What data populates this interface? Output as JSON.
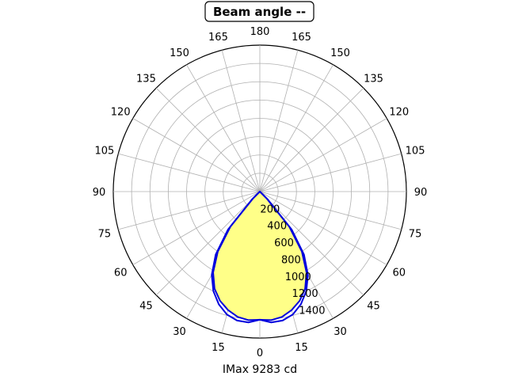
{
  "chart_data": {
    "type": "polar",
    "title": "Beam angle --",
    "xlabel": "IMax 9283 cd",
    "angle_ticks": [
      "0",
      "15",
      "30",
      "45",
      "60",
      "75",
      "90",
      "105",
      "120",
      "135",
      "150",
      "165",
      "180",
      "165",
      "150",
      "135",
      "120",
      "105",
      "90",
      "75",
      "60",
      "45",
      "30",
      "15"
    ],
    "radial_ticks": [
      "200",
      "400",
      "600",
      "800",
      "1000",
      "1200",
      "1400"
    ],
    "radial_values": [
      200,
      400,
      600,
      800,
      1000,
      1200,
      1400
    ],
    "rlim": [
      0,
      1600
    ],
    "grid": true,
    "fill_color": "#ffff88",
    "line_color": "#0000dd",
    "series": [
      {
        "angles": [
          0,
          5,
          10,
          15,
          20,
          25,
          30,
          35,
          40,
          45,
          90
        ],
        "values": [
          1400,
          1410,
          1390,
          1340,
          1270,
          1170,
          1020,
          800,
          500,
          100,
          0
        ]
      },
      {
        "angles": [
          0,
          5,
          10,
          15,
          20,
          25,
          30,
          35,
          40,
          45,
          90
        ],
        "values": [
          1400,
          1435,
          1430,
          1390,
          1310,
          1200,
          1050,
          840,
          540,
          120,
          0
        ]
      }
    ]
  }
}
